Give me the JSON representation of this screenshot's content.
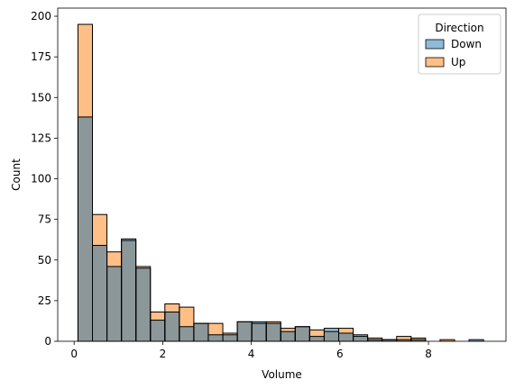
{
  "chart_data": {
    "type": "histogram",
    "xlabel": "Volume",
    "ylabel": "Count",
    "xlim": [
      -0.37,
      9.75
    ],
    "ylim": [
      0,
      205
    ],
    "xticks": [
      0,
      2,
      4,
      6,
      8
    ],
    "yticks": [
      0,
      25,
      50,
      75,
      100,
      125,
      150,
      175,
      200
    ],
    "bin_width": 0.327,
    "bin_start": 0.087,
    "legend": {
      "title": "Direction",
      "placement": "top-right",
      "entries": [
        "Down",
        "Up"
      ]
    },
    "overlap_color": "#8c979a",
    "series": [
      {
        "name": "Down",
        "color": "#1f77b4",
        "fill_alpha": 0.5,
        "values": [
          138,
          59,
          46,
          63,
          45,
          13,
          18,
          9,
          11,
          4,
          4,
          12,
          12,
          11,
          6,
          9,
          3,
          8,
          5,
          4,
          1,
          1,
          1,
          1,
          0,
          0,
          0,
          1
        ]
      },
      {
        "name": "Up",
        "color": "#ff7f0e",
        "fill_alpha": 0.5,
        "values": [
          195,
          78,
          55,
          62,
          46,
          18,
          23,
          21,
          11,
          11,
          5,
          12,
          11,
          12,
          8,
          9,
          7,
          6,
          8,
          3,
          2,
          1,
          3,
          2,
          0,
          1,
          0,
          0
        ]
      }
    ]
  }
}
